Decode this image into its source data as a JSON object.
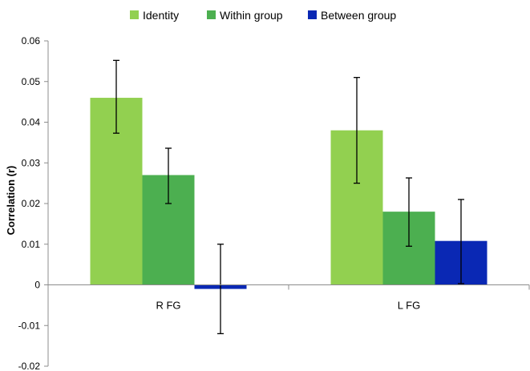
{
  "chart_data": {
    "type": "bar",
    "title": "",
    "xlabel": "",
    "ylabel": "Correlation (r)",
    "ylim": [
      -0.02,
      0.06
    ],
    "yticks": [
      "-0.02",
      "-0.01",
      "0",
      "0.01",
      "0.02",
      "0.03",
      "0.04",
      "0.05",
      "0.06"
    ],
    "grid": false,
    "legend_position": "top",
    "categories": [
      "R FG",
      "L FG"
    ],
    "series": [
      {
        "name": "Identity",
        "color": "#92d050",
        "values": [
          0.046,
          0.038
        ],
        "error_low": [
          0.0373,
          0.025
        ],
        "error_high": [
          0.0552,
          0.051
        ]
      },
      {
        "name": "Within group",
        "color": "#4caf50",
        "values": [
          0.027,
          0.018
        ],
        "error_low": [
          0.02,
          0.0095
        ],
        "error_high": [
          0.0336,
          0.0263
        ]
      },
      {
        "name": "Between group",
        "color": "#0a28b4",
        "values": [
          -0.001,
          0.0108
        ],
        "error_low": [
          -0.012,
          0.0003
        ],
        "error_high": [
          0.01,
          0.021
        ]
      }
    ]
  }
}
